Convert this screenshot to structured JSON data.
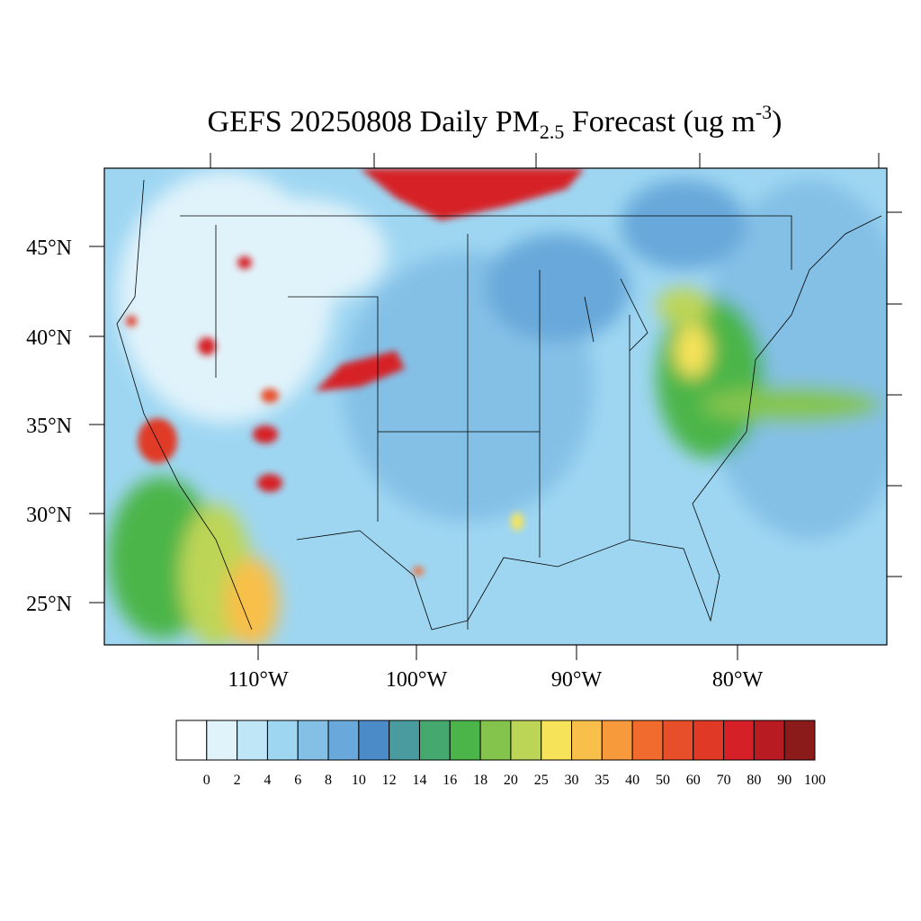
{
  "title": {
    "main": "GEFS 20250808 Daily PM",
    "subscript": "2.5",
    "unit_open": " Forecast (ug m",
    "superscript": "-3",
    "unit_close": ")"
  },
  "map": {
    "lat_labels": [
      "45°N",
      "40°N",
      "35°N",
      "30°N",
      "25°N"
    ],
    "lon_labels": [
      "110°W",
      "100°W",
      "90°W",
      "80°W"
    ]
  },
  "colorbar": {
    "levels": [
      0,
      2,
      4,
      6,
      8,
      10,
      12,
      14,
      16,
      18,
      20,
      25,
      30,
      35,
      40,
      50,
      60,
      70,
      80,
      90,
      100
    ],
    "colors": [
      "#ffffff",
      "#e0f3fb",
      "#bfe6f7",
      "#9ed6f2",
      "#84c0e6",
      "#68a8da",
      "#4a8bc8",
      "#4a9b9f",
      "#45a86e",
      "#4cb54a",
      "#84c44d",
      "#bdd557",
      "#f7e35a",
      "#f8bf4a",
      "#f69a3c",
      "#f06b2d",
      "#e74f2b",
      "#e03a26",
      "#d62027",
      "#b91b23",
      "#8b1a1a"
    ]
  }
}
